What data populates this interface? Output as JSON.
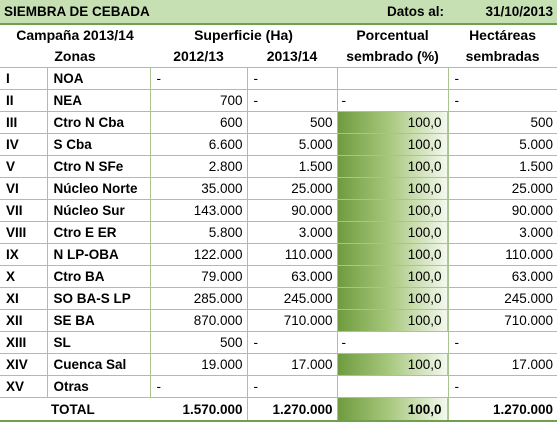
{
  "title": "SIEMBRA DE CEBADA",
  "date_label": "Datos al:",
  "date_value": "31/10/2013",
  "header": {
    "campaign": "Campaña 2013/14",
    "surface": "Superficie (Ha)",
    "pct_line1": "Porcentual",
    "pct_line2": "sembrado (%)",
    "ha_line1": "Hectáreas",
    "ha_line2": "sembradas",
    "zones": "Zonas",
    "year1": "2012/13",
    "year2": "2013/14"
  },
  "rows": [
    {
      "code": "I",
      "zone": "NOA",
      "y1": "-",
      "y2": "-",
      "pct": "",
      "pct_fill": 0,
      "ha": "-"
    },
    {
      "code": "II",
      "zone": "NEA",
      "y1": "700",
      "y2": "-",
      "pct": "-",
      "pct_fill": 0,
      "ha": "-"
    },
    {
      "code": "III",
      "zone": "Ctro N Cba",
      "y1": "600",
      "y2": "500",
      "pct": "100,0",
      "pct_fill": 100,
      "ha": "500"
    },
    {
      "code": "IV",
      "zone": "S Cba",
      "y1": "6.600",
      "y2": "5.000",
      "pct": "100,0",
      "pct_fill": 100,
      "ha": "5.000"
    },
    {
      "code": "V",
      "zone": "Ctro N SFe",
      "y1": "2.800",
      "y2": "1.500",
      "pct": "100,0",
      "pct_fill": 100,
      "ha": "1.500"
    },
    {
      "code": "VI",
      "zone": "Núcleo Norte",
      "y1": "35.000",
      "y2": "25.000",
      "pct": "100,0",
      "pct_fill": 100,
      "ha": "25.000"
    },
    {
      "code": "VII",
      "zone": "Núcleo Sur",
      "y1": "143.000",
      "y2": "90.000",
      "pct": "100,0",
      "pct_fill": 100,
      "ha": "90.000"
    },
    {
      "code": "VIII",
      "zone": "Ctro E ER",
      "y1": "5.800",
      "y2": "3.000",
      "pct": "100,0",
      "pct_fill": 100,
      "ha": "3.000"
    },
    {
      "code": "IX",
      "zone": "N LP-OBA",
      "y1": "122.000",
      "y2": "110.000",
      "pct": "100,0",
      "pct_fill": 100,
      "ha": "110.000"
    },
    {
      "code": "X",
      "zone": "Ctro BA",
      "y1": "79.000",
      "y2": "63.000",
      "pct": "100,0",
      "pct_fill": 100,
      "ha": "63.000"
    },
    {
      "code": "XI",
      "zone": "SO BA-S LP",
      "y1": "285.000",
      "y2": "245.000",
      "pct": "100,0",
      "pct_fill": 100,
      "ha": "245.000"
    },
    {
      "code": "XII",
      "zone": "SE BA",
      "y1": "870.000",
      "y2": "710.000",
      "pct": "100,0",
      "pct_fill": 100,
      "ha": "710.000"
    },
    {
      "code": "XIII",
      "zone": "SL",
      "y1": "500",
      "y2": "-",
      "pct": "-",
      "pct_fill": 0,
      "ha": "-"
    },
    {
      "code": "XIV",
      "zone": "Cuenca Sal",
      "y1": "19.000",
      "y2": "17.000",
      "pct": "100,0",
      "pct_fill": 100,
      "ha": "17.000"
    },
    {
      "code": "XV",
      "zone": "Otras",
      "y1": "-",
      "y2": "-",
      "pct": "",
      "pct_fill": 0,
      "ha": "-"
    }
  ],
  "total": {
    "label": "TOTAL",
    "y1": "1.570.000",
    "y2": "1.270.000",
    "pct": "100,0",
    "pct_fill": 100,
    "ha": "1.270.000"
  }
}
